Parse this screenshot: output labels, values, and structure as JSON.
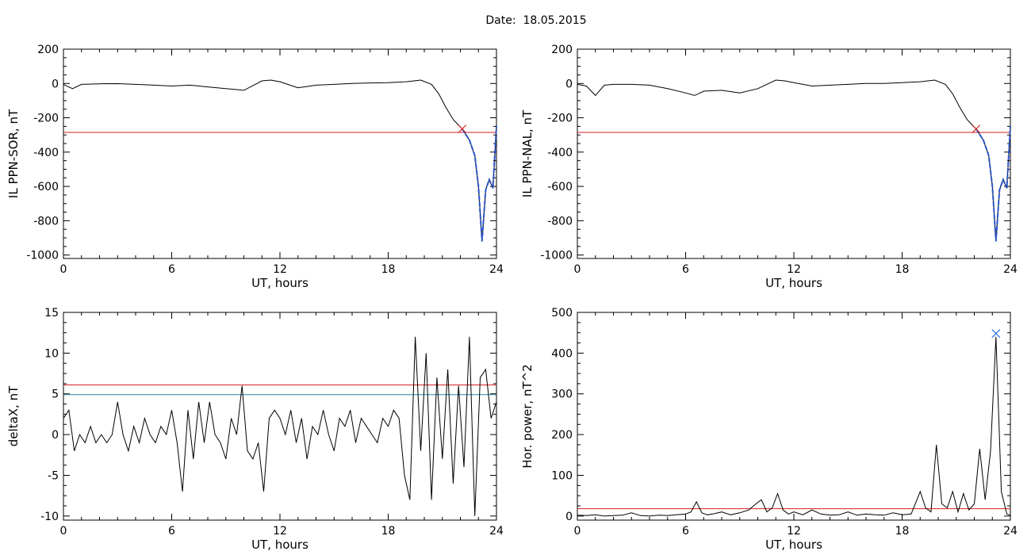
{
  "page_title": "Date:  18.05.2015",
  "chart_data": [
    {
      "type": "line",
      "ylabel": "IL PPN-SOR, nT",
      "xlabel": "UT, hours",
      "xlim": [
        0,
        24
      ],
      "ylim": [
        -1020,
        200
      ],
      "xticks": [
        "0",
        "6",
        "12",
        "18",
        "24"
      ],
      "yticks": [
        "200",
        "0",
        "-200",
        "-400",
        "-600",
        "-800",
        "-1000"
      ],
      "x": [
        0,
        0.5,
        1,
        2,
        3,
        4,
        5,
        6,
        7,
        8,
        9,
        10,
        11,
        11.5,
        12,
        13,
        14,
        15,
        16,
        17,
        18,
        19,
        19.8,
        20.4,
        20.8,
        21.2,
        21.6,
        22.1,
        22.5,
        22.8,
        23.0,
        23.2,
        23.4,
        23.6,
        23.8,
        24
      ],
      "series": [
        {
          "values": [
            -5,
            -30,
            -5,
            -2,
            -1,
            -5,
            -10,
            -15,
            -10,
            -20,
            -30,
            -40,
            15,
            20,
            10,
            -25,
            -10,
            -5,
            0,
            3,
            5,
            10,
            20,
            -5,
            -60,
            -140,
            -210,
            -265,
            -330,
            -420,
            -600,
            -920,
            -620,
            -560,
            -610,
            -250
          ]
        }
      ],
      "threshold": -285,
      "marker_x": 22.1,
      "marker_y": -265,
      "highlight_from": 22.1,
      "colors": {
        "line": "#000000",
        "threshold": "#d62020",
        "highlight": "#2a55c9",
        "marker": "#d62020"
      }
    },
    {
      "type": "line",
      "ylabel": "IL PPN-NAL, nT",
      "xlabel": "UT, hours",
      "xlim": [
        0,
        24
      ],
      "ylim": [
        -1020,
        200
      ],
      "xticks": [
        "0",
        "6",
        "12",
        "18",
        "24"
      ],
      "yticks": [
        "200",
        "0",
        "-200",
        "-400",
        "-600",
        "-800",
        "-1000"
      ],
      "x": [
        0,
        0.5,
        1,
        1.5,
        2,
        3,
        4,
        5,
        6,
        6.5,
        7,
        8,
        9,
        10,
        11,
        11.5,
        12,
        13,
        14,
        15,
        16,
        17,
        18,
        19,
        19.8,
        20.4,
        20.8,
        21.2,
        21.6,
        22.1,
        22.5,
        22.8,
        23.0,
        23.2,
        23.4,
        23.6,
        23.8,
        24
      ],
      "series": [
        {
          "values": [
            -5,
            -15,
            -70,
            -10,
            -5,
            -5,
            -10,
            -30,
            -55,
            -70,
            -45,
            -40,
            -55,
            -30,
            20,
            15,
            5,
            -15,
            -10,
            -5,
            0,
            0,
            5,
            10,
            20,
            -5,
            -60,
            -140,
            -210,
            -265,
            -330,
            -420,
            -600,
            -920,
            -620,
            -560,
            -610,
            -250
          ]
        }
      ],
      "threshold": -285,
      "marker_x": 22.1,
      "marker_y": -265,
      "highlight_from": 22.1,
      "colors": {
        "line": "#000000",
        "threshold": "#d62020",
        "highlight": "#2a55c9",
        "marker": "#d62020"
      }
    },
    {
      "type": "line",
      "ylabel": "deltaX, nT",
      "xlabel": "UT, hours",
      "xlim": [
        0,
        24
      ],
      "ylim": [
        -10.5,
        15
      ],
      "xticks": [
        "0",
        "6",
        "12",
        "18",
        "24"
      ],
      "yticks": [
        "15",
        "10",
        "5",
        "0",
        "-5",
        "-10"
      ],
      "x": [
        0,
        0.3,
        0.6,
        0.9,
        1.2,
        1.5,
        1.8,
        2.1,
        2.4,
        2.7,
        3.0,
        3.3,
        3.6,
        3.9,
        4.2,
        4.5,
        4.8,
        5.1,
        5.4,
        5.7,
        6.0,
        6.3,
        6.6,
        6.9,
        7.2,
        7.5,
        7.8,
        8.1,
        8.4,
        8.7,
        9.0,
        9.3,
        9.6,
        9.9,
        10.2,
        10.5,
        10.8,
        11.1,
        11.4,
        11.7,
        12.0,
        12.3,
        12.6,
        12.9,
        13.2,
        13.5,
        13.8,
        14.1,
        14.4,
        14.7,
        15.0,
        15.3,
        15.6,
        15.9,
        16.2,
        16.5,
        16.8,
        17.1,
        17.4,
        17.7,
        18.0,
        18.3,
        18.6,
        18.9,
        19.2,
        19.5,
        19.8,
        20.1,
        20.4,
        20.7,
        21.0,
        21.3,
        21.6,
        21.9,
        22.2,
        22.5,
        22.8,
        23.1,
        23.4,
        23.7,
        24.0
      ],
      "series": [
        {
          "values": [
            2,
            3,
            -2,
            0,
            -1,
            1,
            -1,
            0,
            -1,
            0,
            4,
            0,
            -2,
            1,
            -1,
            2,
            0,
            -1,
            1,
            0,
            3,
            -1,
            -7,
            3,
            -3,
            4,
            -1,
            4,
            0,
            -1,
            -3,
            2,
            0,
            6,
            -2,
            -3,
            -1,
            -7,
            2,
            3,
            2,
            0,
            3,
            -1,
            2,
            -3,
            1,
            0,
            3,
            0,
            -2,
            2,
            1,
            3,
            -1,
            2,
            1,
            0,
            -1,
            2,
            1,
            3,
            2,
            -5,
            -8,
            12,
            -2,
            10,
            -8,
            7,
            -3,
            8,
            -6,
            6,
            -4,
            12,
            -10,
            7,
            8,
            2,
            4
          ]
        }
      ],
      "threshold": 6.1,
      "threshold2": 4.9,
      "colors": {
        "line": "#000000",
        "threshold": "#d62020",
        "threshold2": "#1f8a9a"
      }
    },
    {
      "type": "line",
      "ylabel": "Hor. power, nT^2",
      "xlabel": "UT, hours",
      "xlim": [
        0,
        24
      ],
      "ylim": [
        -10,
        500
      ],
      "xticks": [
        "0",
        "6",
        "12",
        "18",
        "24"
      ],
      "yticks": [
        "500",
        "400",
        "300",
        "200",
        "100",
        "0"
      ],
      "x": [
        0,
        0.5,
        1,
        1.5,
        2,
        2.5,
        3,
        3.5,
        4,
        4.5,
        5,
        5.5,
        6,
        6.3,
        6.6,
        6.9,
        7.2,
        7.5,
        8,
        8.5,
        9,
        9.5,
        9.9,
        10.2,
        10.5,
        10.8,
        11.1,
        11.4,
        11.7,
        12,
        12.5,
        13,
        13.5,
        14,
        14.5,
        15,
        15.5,
        16,
        16.5,
        17,
        17.5,
        18,
        18.5,
        19,
        19.3,
        19.6,
        19.9,
        20.2,
        20.5,
        20.8,
        21.1,
        21.4,
        21.7,
        22.0,
        22.3,
        22.6,
        22.9,
        23.2,
        23.5,
        23.8,
        24
      ],
      "series": [
        {
          "values": [
            2,
            1,
            3,
            0,
            1,
            2,
            8,
            1,
            0,
            2,
            1,
            3,
            5,
            10,
            35,
            8,
            3,
            5,
            10,
            3,
            8,
            15,
            30,
            40,
            10,
            20,
            55,
            15,
            5,
            10,
            3,
            15,
            5,
            2,
            3,
            10,
            2,
            5,
            3,
            2,
            8,
            3,
            5,
            60,
            20,
            10,
            175,
            30,
            20,
            60,
            10,
            55,
            15,
            30,
            165,
            40,
            160,
            440,
            60,
            5,
            2
          ]
        }
      ],
      "threshold": 18,
      "marker_x": 23.2,
      "marker_y": 448,
      "colors": {
        "line": "#000000",
        "threshold": "#d62020",
        "marker": "#2a6fd6"
      }
    }
  ]
}
